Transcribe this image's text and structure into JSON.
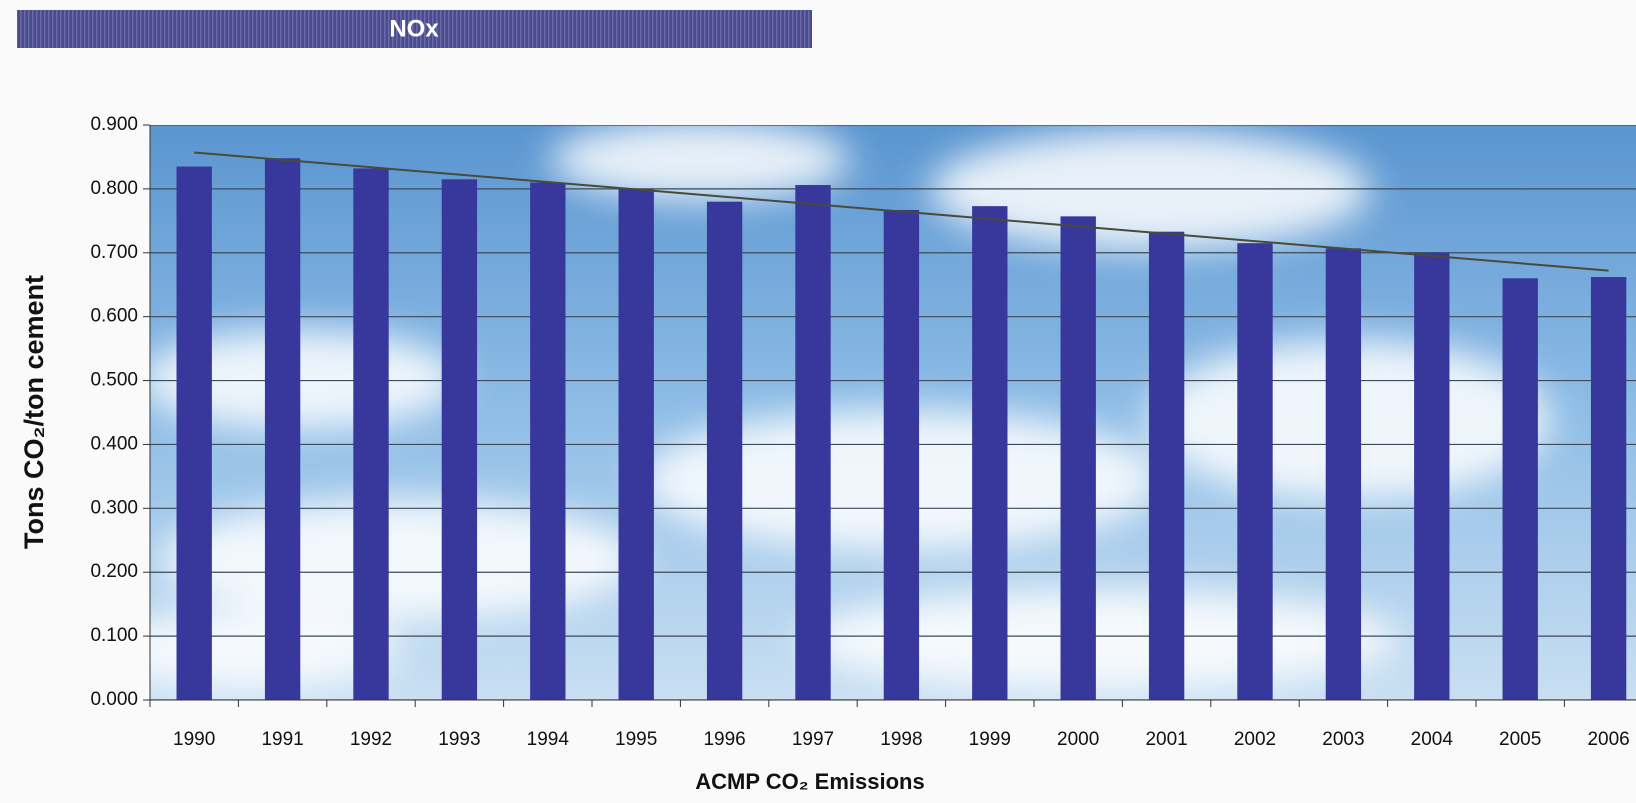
{
  "chart_data": {
    "type": "bar",
    "title": "NOx",
    "y_label": "Tons CO₂/ton cement",
    "x_label": "ACMP CO₂ Emissions",
    "categories": [
      "1990",
      "1991",
      "1992",
      "1993",
      "1994",
      "1995",
      "1996",
      "1997",
      "1998",
      "1999",
      "2000",
      "2001",
      "2002",
      "2003",
      "2004",
      "2005",
      "2006"
    ],
    "values": [
      0.835,
      0.848,
      0.832,
      0.815,
      0.81,
      0.8,
      0.78,
      0.806,
      0.767,
      0.773,
      0.757,
      0.733,
      0.715,
      0.707,
      0.7,
      0.66,
      0.662
    ],
    "color": "#38379c",
    "trendline": {
      "values": [
        0.857,
        0.672
      ],
      "color": "#4a4a3a"
    },
    "ylim": [
      0,
      0.9
    ],
    "yticks": [
      {
        "value": 0,
        "label": "0.000"
      },
      {
        "value": 0.1,
        "label": "0.100"
      },
      {
        "value": 0.2,
        "label": "0.200"
      },
      {
        "value": 0.3,
        "label": "0.300"
      },
      {
        "value": 0.4,
        "label": "0.400"
      },
      {
        "value": 0.5,
        "label": "0.500"
      },
      {
        "value": 0.6,
        "label": "0.600"
      },
      {
        "value": 0.7,
        "label": "0.700"
      },
      {
        "value": 0.8,
        "label": "0.800"
      },
      {
        "value": 0.9,
        "label": "0.900"
      }
    ],
    "grid": true
  }
}
